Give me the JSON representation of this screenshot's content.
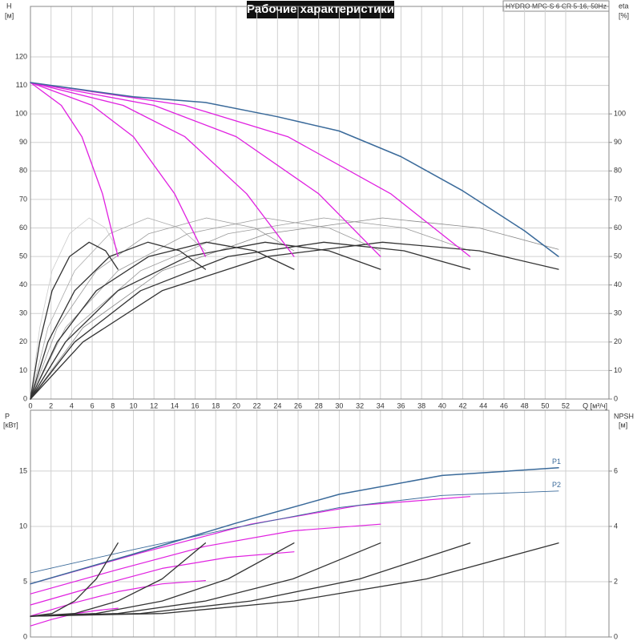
{
  "chart_data": [
    {
      "type": "line",
      "title": "Рабочие характеристики",
      "subtitle": "HYDRO MPC-S 6 CR 5-16, 50Hz",
      "y_label": "H",
      "y_unit": "[м]",
      "y2_label": "eta",
      "y2_unit": "[%]",
      "x_label": "Q [м³/ч]",
      "xlim": [
        0,
        56.2
      ],
      "xticks": [
        0,
        2,
        4,
        6,
        8,
        10,
        12,
        14,
        16,
        18,
        20,
        22,
        24,
        26,
        28,
        30,
        32,
        34,
        36,
        38,
        40,
        42,
        44,
        46,
        48,
        50,
        52
      ],
      "ylim": [
        0,
        137.7
      ],
      "yticks": [
        0,
        10,
        20,
        30,
        40,
        50,
        60,
        70,
        80,
        90,
        100,
        110,
        120
      ],
      "y2lim": [
        0,
        137.7
      ],
      "y2ticks": [
        0,
        10,
        20,
        30,
        40,
        50,
        60,
        70,
        80,
        90,
        100
      ],
      "grid": true,
      "series": [
        {
          "color": "#cccccc",
          "linewidth": 0.8,
          "axis": "y2",
          "x": [
            0,
            0.9,
            2.1,
            3.8,
            5.7,
            7.3,
            8.5
          ],
          "values": [
            0,
            25,
            45,
            58,
            63.5,
            60,
            52
          ]
        },
        {
          "color": "#aaaaaa",
          "linewidth": 0.8,
          "axis": "y2",
          "x": [
            0,
            1.7,
            4.3,
            7.7,
            11.4,
            14.5,
            17
          ],
          "values": [
            0,
            25,
            45,
            58,
            63.5,
            60,
            52
          ]
        },
        {
          "color": "#999999",
          "linewidth": 0.8,
          "axis": "y2",
          "x": [
            0,
            2.6,
            6.4,
            11.5,
            17.1,
            21.8,
            25.6
          ],
          "values": [
            0,
            25,
            45,
            58,
            63.5,
            60,
            52
          ]
        },
        {
          "color": "#999999",
          "linewidth": 0.8,
          "axis": "y2",
          "x": [
            0,
            3.4,
            8.5,
            15.3,
            22.8,
            29,
            34
          ],
          "values": [
            0,
            25,
            45,
            58,
            63.5,
            60,
            52
          ]
        },
        {
          "color": "#999999",
          "linewidth": 0.8,
          "axis": "y2",
          "x": [
            0,
            4.3,
            10.7,
            19.2,
            28.5,
            36.3,
            42.7
          ],
          "values": [
            0,
            25,
            45,
            58,
            63.5,
            60,
            52
          ]
        },
        {
          "color": "#888888",
          "linewidth": 0.8,
          "axis": "y2",
          "x": [
            0,
            5.1,
            12.8,
            23,
            34.2,
            43.6,
            51.3
          ],
          "values": [
            0,
            25,
            45,
            58,
            63.5,
            60,
            52.5
          ]
        },
        {
          "color": "#333333",
          "linewidth": 1.3,
          "axis": "y2",
          "x": [
            0,
            0.9,
            2.1,
            3.8,
            5.7,
            7.3,
            8.5
          ],
          "values": [
            0,
            20,
            38,
            50,
            55,
            52,
            45.5
          ]
        },
        {
          "color": "#333333",
          "linewidth": 1.3,
          "axis": "y2",
          "x": [
            0,
            1.7,
            4.3,
            7.7,
            11.4,
            14.5,
            17
          ],
          "values": [
            0,
            20,
            38,
            50,
            55,
            52,
            45.5
          ]
        },
        {
          "color": "#333333",
          "linewidth": 1.3,
          "axis": "y2",
          "x": [
            0,
            2.6,
            6.4,
            11.5,
            17.1,
            21.8,
            25.6
          ],
          "values": [
            0,
            20,
            38,
            50,
            55,
            52,
            45.5
          ]
        },
        {
          "color": "#333333",
          "linewidth": 1.3,
          "axis": "y2",
          "x": [
            0,
            3.4,
            8.5,
            15.3,
            22.8,
            29,
            34
          ],
          "values": [
            0,
            20,
            38,
            50,
            55,
            52,
            45.5
          ]
        },
        {
          "color": "#333333",
          "linewidth": 1.3,
          "axis": "y2",
          "x": [
            0,
            4.3,
            10.7,
            19.2,
            28.5,
            36.3,
            42.7
          ],
          "values": [
            0,
            20,
            38,
            50,
            55,
            52,
            45.5
          ]
        },
        {
          "color": "#333333",
          "linewidth": 1.3,
          "axis": "y2",
          "x": [
            0,
            5.1,
            12.8,
            23,
            34.2,
            43.6,
            51.3
          ],
          "values": [
            0,
            20,
            38,
            50,
            55,
            52,
            45.5
          ]
        },
        {
          "color": "#e020e0",
          "linewidth": 1.3,
          "x": [
            0,
            3,
            5,
            7,
            8.5
          ],
          "values": [
            111,
            103,
            92,
            72,
            50
          ]
        },
        {
          "color": "#e020e0",
          "linewidth": 1.3,
          "x": [
            0,
            6,
            10,
            14,
            17
          ],
          "values": [
            111,
            103,
            92,
            72,
            50
          ]
        },
        {
          "color": "#e020e0",
          "linewidth": 1.3,
          "x": [
            0,
            9,
            15,
            21,
            25.6
          ],
          "values": [
            111,
            103,
            92,
            72,
            50
          ]
        },
        {
          "color": "#e020e0",
          "linewidth": 1.3,
          "x": [
            0,
            12,
            20,
            28,
            34
          ],
          "values": [
            111,
            103,
            92,
            72,
            50
          ]
        },
        {
          "color": "#e020e0",
          "linewidth": 1.3,
          "x": [
            0,
            15,
            25,
            35,
            42.7
          ],
          "values": [
            111,
            103,
            92,
            72,
            50
          ]
        },
        {
          "color": "#3a6a9a",
          "linewidth": 1.5,
          "x": [
            0,
            10,
            17,
            24,
            30,
            36,
            42,
            48,
            51.3
          ],
          "values": [
            111,
            106,
            104,
            99,
            94,
            85,
            73,
            59,
            50
          ]
        }
      ]
    },
    {
      "type": "line",
      "y_label": "P",
      "y_unit": "[кВт]",
      "y2_label": "NPSH",
      "y2_unit": "[м]",
      "xlim": [
        0,
        56.2
      ],
      "xticks": [
        0,
        2,
        4,
        6,
        8,
        10,
        12,
        14,
        16,
        18,
        20,
        22,
        24,
        26,
        28,
        30,
        32,
        34,
        36,
        38,
        40,
        42,
        44,
        46,
        48,
        50,
        52
      ],
      "ylim": [
        0,
        20.5
      ],
      "yticks": [
        0,
        5,
        10,
        15
      ],
      "y2lim": [
        0,
        8.2
      ],
      "y2ticks": [
        0,
        2,
        4,
        6
      ],
      "grid": true,
      "series": [
        {
          "color": "#e020e0",
          "linewidth": 1.2,
          "x": [
            0,
            2.1,
            4.3,
            6.4,
            8.5
          ],
          "values": [
            1,
            1.6,
            2.1,
            2.4,
            2.6
          ]
        },
        {
          "color": "#e020e0",
          "linewidth": 1.2,
          "x": [
            0,
            4.3,
            8.5,
            12.8,
            17
          ],
          "values": [
            1.9,
            3.1,
            4.1,
            4.8,
            5.1
          ]
        },
        {
          "color": "#e020e0",
          "linewidth": 1.2,
          "x": [
            0,
            6.4,
            12.8,
            19.2,
            25.6
          ],
          "values": [
            2.9,
            4.6,
            6.2,
            7.2,
            7.7
          ]
        },
        {
          "color": "#e020e0",
          "linewidth": 1.2,
          "x": [
            0,
            8.5,
            17,
            25.5,
            34
          ],
          "values": [
            3.9,
            6.1,
            8.2,
            9.6,
            10.2
          ]
        },
        {
          "color": "#e020e0",
          "linewidth": 1.2,
          "x": [
            0,
            10.7,
            21.4,
            32,
            42.7
          ],
          "values": [
            4.8,
            7.6,
            10.2,
            11.9,
            12.7
          ]
        },
        {
          "name": "P1",
          "color": "#3a6a9a",
          "linewidth": 1.5,
          "x": [
            0,
            10,
            20,
            30,
            40,
            51.3
          ],
          "values": [
            4.8,
            7.5,
            10.3,
            12.9,
            14.6,
            15.3
          ]
        },
        {
          "name": "P2",
          "color": "#3a6a9a",
          "linewidth": 0.9,
          "x": [
            0,
            10,
            20,
            30,
            40,
            51.3
          ],
          "values": [
            5.8,
            7.9,
            9.9,
            11.7,
            12.8,
            13.2
          ]
        },
        {
          "color": "#333333",
          "linewidth": 1.3,
          "axis": "y2",
          "x": [
            0,
            2.1,
            4.3,
            6.4,
            8.5
          ],
          "values": [
            0.75,
            0.85,
            1.3,
            2.1,
            3.4
          ]
        },
        {
          "color": "#333333",
          "linewidth": 1.3,
          "axis": "y2",
          "x": [
            0,
            4.3,
            8.5,
            12.8,
            17
          ],
          "values": [
            0.75,
            0.85,
            1.3,
            2.1,
            3.4
          ]
        },
        {
          "color": "#333333",
          "linewidth": 1.3,
          "axis": "y2",
          "x": [
            0,
            6.4,
            12.8,
            19.2,
            25.6
          ],
          "values": [
            0.75,
            0.85,
            1.3,
            2.1,
            3.4
          ]
        },
        {
          "color": "#333333",
          "linewidth": 1.3,
          "axis": "y2",
          "x": [
            0,
            8.5,
            17,
            25.5,
            34
          ],
          "values": [
            0.75,
            0.85,
            1.3,
            2.1,
            3.4
          ]
        },
        {
          "color": "#333333",
          "linewidth": 1.3,
          "axis": "y2",
          "x": [
            0,
            10.7,
            21.4,
            32,
            42.7
          ],
          "values": [
            0.75,
            0.85,
            1.3,
            2.1,
            3.4
          ]
        },
        {
          "color": "#333333",
          "linewidth": 1.3,
          "axis": "y2",
          "x": [
            0,
            12.8,
            25.6,
            38.5,
            51.3
          ],
          "values": [
            0.75,
            0.85,
            1.3,
            2.1,
            3.4
          ]
        }
      ]
    }
  ]
}
